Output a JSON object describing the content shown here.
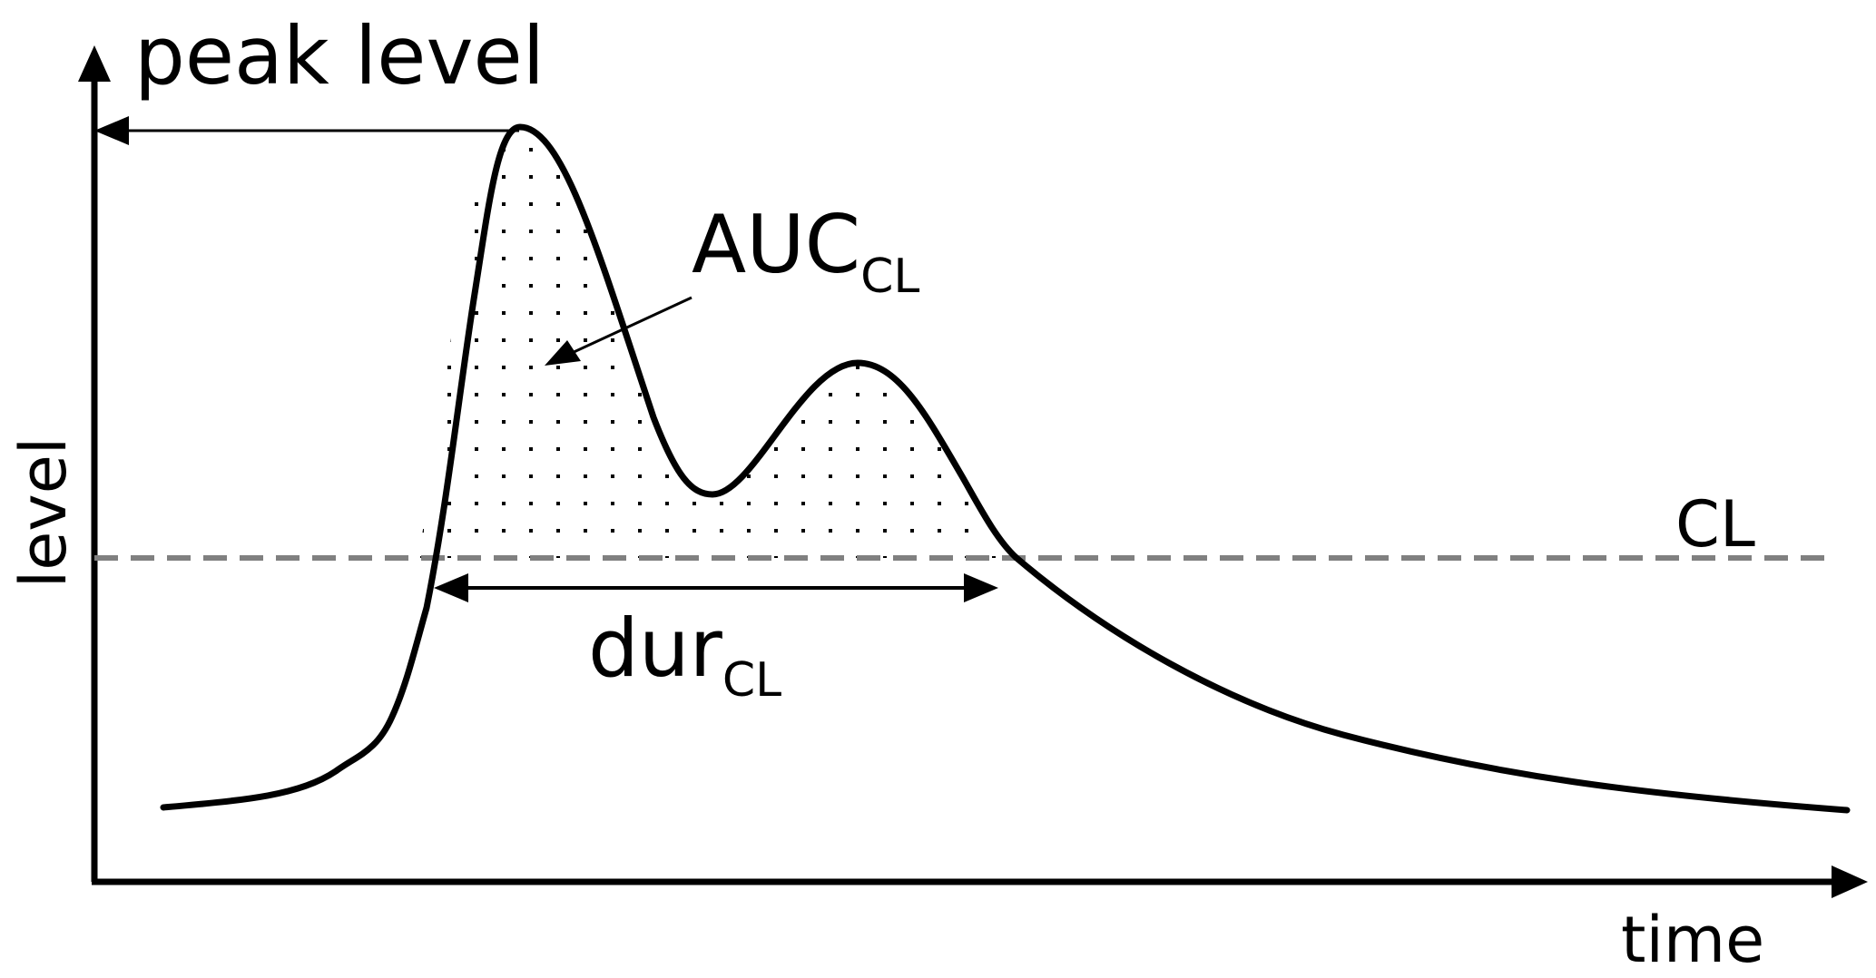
{
  "labels": {
    "peak": "peak level",
    "auc_main": "AUC",
    "auc_sub": "CL",
    "dur_main": "dur",
    "dur_sub": "CL",
    "cl_line": "CL",
    "y_axis": "level",
    "x_axis": "time"
  },
  "colors": {
    "curve": "#000000",
    "axes": "#000000",
    "threshold": "#808080",
    "dots": "#000000",
    "background": "#ffffff"
  }
}
